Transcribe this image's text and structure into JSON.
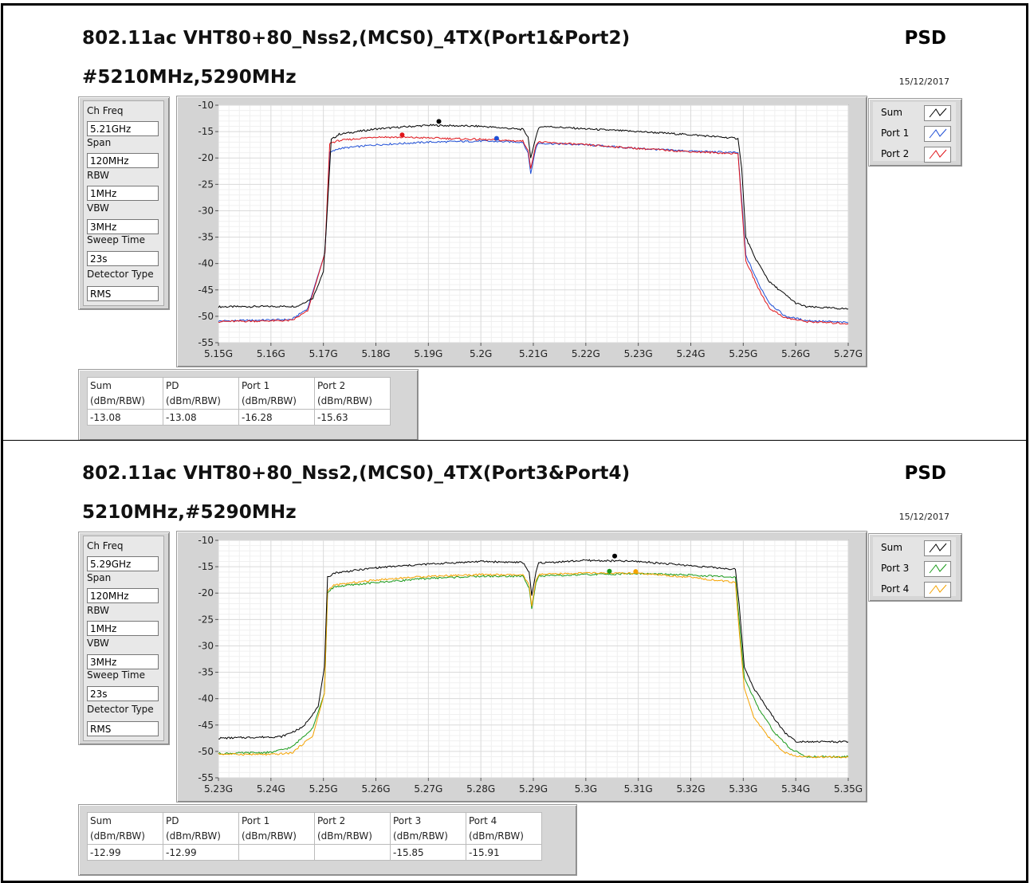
{
  "panels": [
    {
      "title_line1": "802.11ac VHT80+80_Nss2,(MCS0)_4TX(Port1&Port2)",
      "title_line2": "#5210MHz,5290MHz",
      "psd_label": "PSD",
      "date": "15/12/2017",
      "params": [
        {
          "label": "Ch Freq",
          "value": "5.21GHz"
        },
        {
          "label": "Span",
          "value": "120MHz"
        },
        {
          "label": "RBW",
          "value": "1MHz"
        },
        {
          "label": "VBW",
          "value": "3MHz"
        },
        {
          "label": "Sweep Time",
          "value": "23s"
        },
        {
          "label": "Detector Type",
          "value": "RMS"
        }
      ],
      "legend": [
        {
          "name": "Sum",
          "color": "#000000"
        },
        {
          "name": "Port 1",
          "color": "#1f4fd6"
        },
        {
          "name": "Port 2",
          "color": "#e0151b"
        }
      ],
      "table": {
        "headers": [
          "Sum",
          "PD",
          "Port 1",
          "Port 2"
        ],
        "units": [
          "(dBm/RBW)",
          "(dBm/RBW)",
          "(dBm/RBW)",
          "(dBm/RBW)"
        ],
        "values": [
          "-13.08",
          "-13.08",
          "-16.28",
          "-15.63"
        ]
      }
    },
    {
      "title_line1": "802.11ac VHT80+80_Nss2,(MCS0)_4TX(Port3&Port4)",
      "title_line2": "5210MHz,#5290MHz",
      "psd_label": "PSD",
      "date": "15/12/2017",
      "params": [
        {
          "label": "Ch Freq",
          "value": "5.29GHz"
        },
        {
          "label": "Span",
          "value": "120MHz"
        },
        {
          "label": "RBW",
          "value": "1MHz"
        },
        {
          "label": "VBW",
          "value": "3MHz"
        },
        {
          "label": "Sweep Time",
          "value": "23s"
        },
        {
          "label": "Detector Type",
          "value": "RMS"
        }
      ],
      "legend": [
        {
          "name": "Sum",
          "color": "#000000"
        },
        {
          "name": "Port 3",
          "color": "#1a9a1a"
        },
        {
          "name": "Port 4",
          "color": "#f5a300"
        }
      ],
      "table": {
        "headers": [
          "Sum",
          "PD",
          "Port 1",
          "Port 2",
          "Port 3",
          "Port 4"
        ],
        "units": [
          "(dBm/RBW)",
          "(dBm/RBW)",
          "(dBm/RBW)",
          "(dBm/RBW)",
          "(dBm/RBW)",
          "(dBm/RBW)"
        ],
        "values": [
          "-12.99",
          "-12.99",
          "",
          "",
          "-15.85",
          "-15.91"
        ]
      }
    }
  ],
  "chart_data": [
    {
      "type": "line",
      "xlim": [
        5.15,
        5.27
      ],
      "ylim": [
        -55,
        -10
      ],
      "x_tick_labels": [
        "5.15G",
        "5.16G",
        "5.17G",
        "5.18G",
        "5.19G",
        "5.2G",
        "5.21G",
        "5.22G",
        "5.23G",
        "5.24G",
        "5.25G",
        "5.26G",
        "5.27G"
      ],
      "y_tick_labels": [
        "-10",
        "-15",
        "-20",
        "-25",
        "-30",
        "-35",
        "-40",
        "-45",
        "-50",
        "-55"
      ],
      "x_ticks": [
        5.15,
        5.16,
        5.17,
        5.18,
        5.19,
        5.2,
        5.21,
        5.22,
        5.23,
        5.24,
        5.25,
        5.26,
        5.27
      ],
      "y_ticks": [
        -10,
        -15,
        -20,
        -25,
        -30,
        -35,
        -40,
        -45,
        -50,
        -55
      ],
      "grid": true,
      "legend_position": "right",
      "series": [
        {
          "name": "Sum",
          "color": "#000000",
          "x": [
            5.15,
            5.165,
            5.168,
            5.17,
            5.1705,
            5.1715,
            5.173,
            5.18,
            5.19,
            5.2,
            5.208,
            5.209,
            5.2095,
            5.2105,
            5.211,
            5.212,
            5.22,
            5.23,
            5.24,
            5.249,
            5.2497,
            5.2505,
            5.252,
            5.255,
            5.26,
            5.262,
            5.27
          ],
          "y": [
            -48.2,
            -48.1,
            -46.5,
            -41.5,
            -34,
            -16.5,
            -15.5,
            -14.5,
            -13.8,
            -14.0,
            -14.6,
            -16,
            -20,
            -16,
            -14.3,
            -14.0,
            -14.5,
            -15.0,
            -15.6,
            -16.3,
            -22,
            -35,
            -38.5,
            -43.5,
            -47.5,
            -48.2,
            -48.6
          ],
          "marker": {
            "x": 5.192,
            "y": -13.08
          }
        },
        {
          "name": "Port 1",
          "color": "#1f4fd6",
          "x": [
            5.15,
            5.164,
            5.167,
            5.1703,
            5.1712,
            5.173,
            5.18,
            5.19,
            5.2,
            5.208,
            5.209,
            5.2095,
            5.2105,
            5.211,
            5.22,
            5.23,
            5.24,
            5.249,
            5.2497,
            5.2505,
            5.253,
            5.255,
            5.258,
            5.262,
            5.27
          ],
          "y": [
            -50.9,
            -50.6,
            -48.5,
            -38,
            -19,
            -18.2,
            -17.5,
            -17.0,
            -16.8,
            -17.0,
            -19,
            -23,
            -18,
            -17.2,
            -17.5,
            -18.2,
            -18.7,
            -19.0,
            -28,
            -38.5,
            -44,
            -47.5,
            -50,
            -50.8,
            -51.2
          ],
          "marker": {
            "x": 5.203,
            "y": -16.28
          }
        },
        {
          "name": "Port 2",
          "color": "#e0151b",
          "x": [
            5.15,
            5.164,
            5.167,
            5.1703,
            5.1712,
            5.173,
            5.18,
            5.19,
            5.2,
            5.208,
            5.209,
            5.2095,
            5.2105,
            5.211,
            5.22,
            5.23,
            5.24,
            5.249,
            5.2497,
            5.2505,
            5.253,
            5.255,
            5.258,
            5.262,
            5.27
          ],
          "y": [
            -51.0,
            -50.8,
            -49,
            -38,
            -17.2,
            -16.7,
            -16.0,
            -16.2,
            -16.5,
            -16.8,
            -18.5,
            -22,
            -17.5,
            -17.0,
            -17.5,
            -18.2,
            -18.8,
            -19.2,
            -29,
            -39.5,
            -45,
            -48.5,
            -50.3,
            -51,
            -51.4
          ],
          "marker": {
            "x": 5.185,
            "y": -15.63
          }
        }
      ]
    },
    {
      "type": "line",
      "xlim": [
        5.23,
        5.35
      ],
      "ylim": [
        -55,
        -10
      ],
      "x_tick_labels": [
        "5.23G",
        "5.24G",
        "5.25G",
        "5.26G",
        "5.27G",
        "5.28G",
        "5.29G",
        "5.3G",
        "5.31G",
        "5.32G",
        "5.33G",
        "5.34G",
        "5.35G"
      ],
      "y_tick_labels": [
        "-10",
        "-15",
        "-20",
        "-25",
        "-30",
        "-35",
        "-40",
        "-45",
        "-50",
        "-55"
      ],
      "x_ticks": [
        5.23,
        5.24,
        5.25,
        5.26,
        5.27,
        5.28,
        5.29,
        5.3,
        5.31,
        5.32,
        5.33,
        5.34,
        5.35
      ],
      "y_ticks": [
        -10,
        -15,
        -20,
        -25,
        -30,
        -35,
        -40,
        -45,
        -50,
        -55
      ],
      "grid": true,
      "legend_position": "right",
      "series": [
        {
          "name": "Sum",
          "color": "#000000",
          "x": [
            5.23,
            5.242,
            5.246,
            5.249,
            5.2502,
            5.2508,
            5.252,
            5.26,
            5.27,
            5.28,
            5.288,
            5.2892,
            5.2897,
            5.2905,
            5.291,
            5.3,
            5.31,
            5.32,
            5.3285,
            5.3292,
            5.3302,
            5.332,
            5.335,
            5.338,
            5.34,
            5.35
          ],
          "y": [
            -47.5,
            -47.2,
            -45.5,
            -41.5,
            -34,
            -17,
            -16.2,
            -15.2,
            -14.5,
            -14.0,
            -14.2,
            -16,
            -20.5,
            -16,
            -14.3,
            -13.8,
            -14.0,
            -14.8,
            -15.5,
            -22,
            -34,
            -38,
            -42.5,
            -46.5,
            -48.1,
            -48.2
          ],
          "marker": {
            "x": 5.3055,
            "y": -12.99
          }
        },
        {
          "name": "Port 3",
          "color": "#1a9a1a",
          "x": [
            5.23,
            5.24,
            5.244,
            5.248,
            5.2502,
            5.2508,
            5.252,
            5.26,
            5.27,
            5.28,
            5.288,
            5.2892,
            5.2897,
            5.2905,
            5.291,
            5.3,
            5.31,
            5.32,
            5.3285,
            5.3292,
            5.3302,
            5.333,
            5.336,
            5.339,
            5.342,
            5.35
          ],
          "y": [
            -50.4,
            -50.2,
            -49.2,
            -45.5,
            -39,
            -20,
            -18.8,
            -18.0,
            -17.2,
            -16.8,
            -16.8,
            -19,
            -23,
            -18,
            -16.8,
            -16.5,
            -16.3,
            -16.6,
            -17.0,
            -25,
            -36,
            -42,
            -46.5,
            -49.5,
            -51.0,
            -51.0
          ],
          "marker": {
            "x": 5.3045,
            "y": -15.85
          }
        },
        {
          "name": "Port 4",
          "color": "#f5a300",
          "x": [
            5.23,
            5.24,
            5.244,
            5.248,
            5.2502,
            5.2508,
            5.252,
            5.26,
            5.27,
            5.28,
            5.288,
            5.2892,
            5.2897,
            5.2905,
            5.291,
            5.3,
            5.31,
            5.32,
            5.3285,
            5.3292,
            5.3302,
            5.332,
            5.335,
            5.338,
            5.341,
            5.35
          ],
          "y": [
            -50.5,
            -50.6,
            -50.3,
            -47,
            -39,
            -19.5,
            -18.5,
            -17.5,
            -16.8,
            -16.5,
            -16.6,
            -18.5,
            -22.5,
            -17.5,
            -16.5,
            -16.2,
            -16.3,
            -17.0,
            -18.0,
            -27,
            -38,
            -43.5,
            -47.5,
            -50.3,
            -51.0,
            -51.1
          ],
          "marker": {
            "x": 5.3095,
            "y": -15.91
          }
        }
      ]
    }
  ]
}
